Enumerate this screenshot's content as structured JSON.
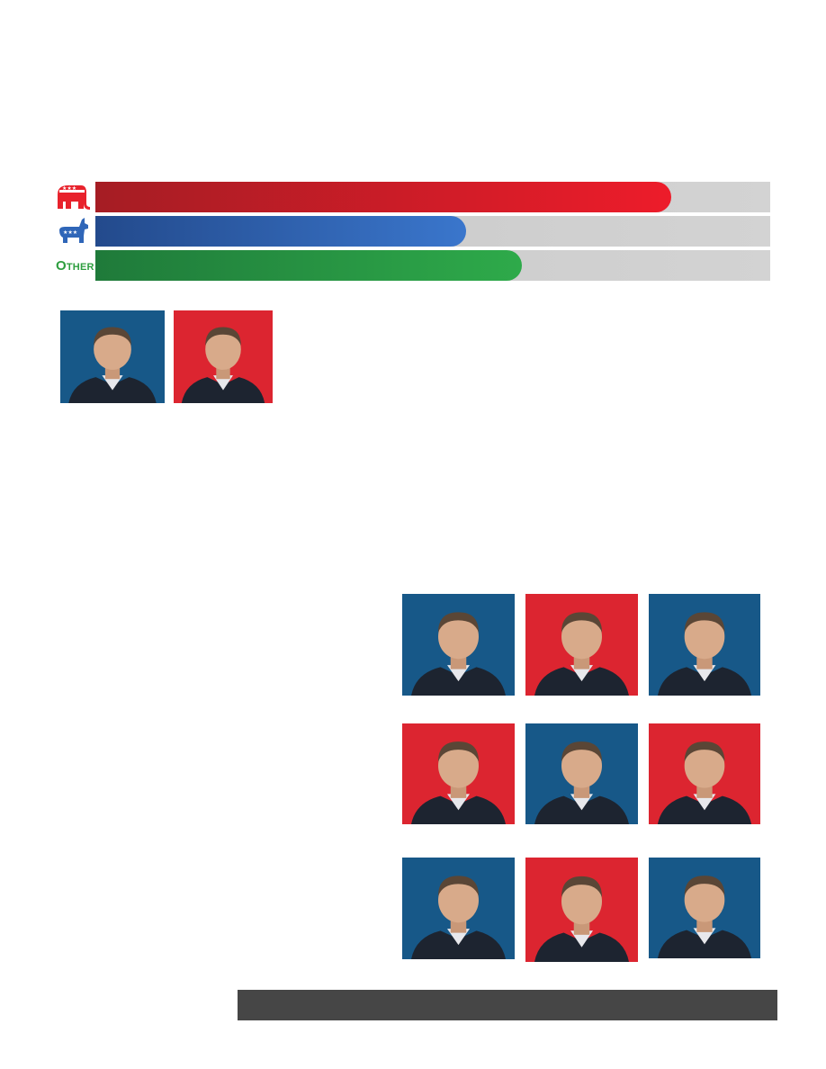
{
  "parties": [
    {
      "key": "republican",
      "icon": "elephant-icon",
      "fill_fraction": 0.853,
      "color": "#ed1c2a"
    },
    {
      "key": "democrat",
      "icon": "donkey-icon",
      "fill_fraction": 0.549,
      "color": "#3a76cc"
    },
    {
      "key": "other",
      "label_first": "O",
      "label_rest": "THER",
      "fill_fraction": 0.632,
      "color": "#2eaa4a"
    }
  ],
  "colors": {
    "red_bg": "#dc2530",
    "blue_bg": "#175888",
    "track": "#cccccc",
    "footer": "#464646"
  },
  "portraits": [
    {
      "bg": "blue"
    },
    {
      "bg": "red"
    },
    {
      "bg": "blue"
    },
    {
      "bg": "red"
    },
    {
      "bg": "blue"
    },
    {
      "bg": "red"
    },
    {
      "bg": "blue"
    },
    {
      "bg": "red"
    },
    {
      "bg": "blue"
    },
    {
      "bg": "red"
    },
    {
      "bg": "blue"
    }
  ]
}
